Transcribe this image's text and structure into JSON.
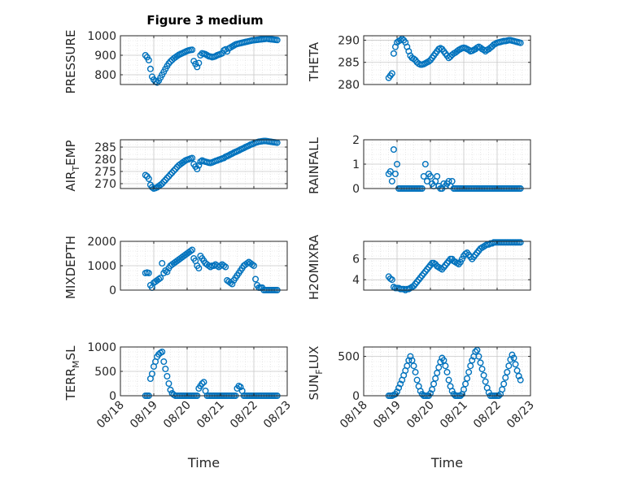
{
  "figure_title": "Figure 3 medium",
  "marker_color": "#0072BD",
  "chart_data": [
    {
      "type": "scatter",
      "ylabel": "PRESSURE",
      "ylim": [
        750,
        1000
      ],
      "yticks": [
        800,
        900,
        1000
      ],
      "xlim": [
        0,
        5
      ],
      "x": [
        0.75,
        0.8,
        0.85,
        0.9,
        0.95,
        1.0,
        1.05,
        1.1,
        1.15,
        1.2,
        1.25,
        1.3,
        1.35,
        1.4,
        1.45,
        1.5,
        1.55,
        1.6,
        1.65,
        1.7,
        1.75,
        1.8,
        1.85,
        1.9,
        1.95,
        2.0,
        2.05,
        2.1,
        2.15,
        2.2,
        2.25,
        2.3,
        2.35,
        2.4,
        2.45,
        2.5,
        2.55,
        2.6,
        2.65,
        2.7,
        2.75,
        2.8,
        2.85,
        2.9,
        2.95,
        3.0,
        3.05,
        3.1,
        3.15,
        3.2,
        3.25,
        3.3,
        3.35,
        3.4,
        3.45,
        3.5,
        3.55,
        3.6,
        3.65,
        3.7,
        3.75,
        3.8,
        3.85,
        3.9,
        3.95,
        4.0,
        4.05,
        4.1,
        4.15,
        4.2,
        4.25,
        4.3,
        4.35,
        4.4,
        4.45,
        4.5,
        4.55,
        4.6,
        4.65,
        4.7
      ],
      "y": [
        900,
        890,
        875,
        830,
        790,
        775,
        765,
        760,
        770,
        785,
        800,
        815,
        830,
        845,
        858,
        868,
        876,
        884,
        890,
        896,
        902,
        906,
        910,
        914,
        918,
        922,
        925,
        927,
        928,
        870,
        855,
        840,
        860,
        900,
        910,
        908,
        905,
        900,
        895,
        893,
        890,
        892,
        895,
        900,
        903,
        906,
        910,
        925,
        930,
        920,
        935,
        940,
        945,
        950,
        955,
        958,
        960,
        962,
        964,
        966,
        968,
        970,
        972,
        974,
        976,
        977,
        978,
        979,
        980,
        981,
        982,
        983,
        984,
        985,
        983,
        982,
        981,
        980,
        979,
        978
      ]
    },
    {
      "type": "scatter",
      "ylabel": "THETA",
      "ylim": [
        280,
        291
      ],
      "yticks": [
        280,
        285,
        290
      ],
      "xlim": [
        0,
        5
      ],
      "x": [
        0.75,
        0.8,
        0.85,
        0.9,
        0.95,
        1.0,
        1.05,
        1.1,
        1.15,
        1.2,
        1.25,
        1.3,
        1.35,
        1.4,
        1.45,
        1.5,
        1.55,
        1.6,
        1.65,
        1.7,
        1.75,
        1.8,
        1.85,
        1.9,
        1.95,
        2.0,
        2.05,
        2.1,
        2.15,
        2.2,
        2.25,
        2.3,
        2.35,
        2.4,
        2.45,
        2.5,
        2.55,
        2.6,
        2.65,
        2.7,
        2.75,
        2.8,
        2.85,
        2.9,
        2.95,
        3.0,
        3.05,
        3.1,
        3.15,
        3.2,
        3.25,
        3.3,
        3.35,
        3.4,
        3.45,
        3.5,
        3.55,
        3.6,
        3.65,
        3.7,
        3.75,
        3.8,
        3.85,
        3.9,
        3.95,
        4.0,
        4.05,
        4.1,
        4.15,
        4.2,
        4.25,
        4.3,
        4.35,
        4.4,
        4.45,
        4.5,
        4.55,
        4.6,
        4.65,
        4.7
      ],
      "y": [
        281.5,
        282,
        282.5,
        287,
        288.5,
        289.5,
        289.8,
        290,
        290.3,
        290,
        289.5,
        288.5,
        287.5,
        286.5,
        286,
        285.8,
        285.5,
        285,
        284.7,
        284.5,
        284.5,
        284.6,
        284.8,
        285,
        285.2,
        285.5,
        286,
        286.5,
        287,
        287.5,
        288,
        288.2,
        288,
        287.5,
        287,
        286.5,
        286,
        286.3,
        286.7,
        287,
        287.2,
        287.5,
        287.8,
        288,
        288.2,
        288.3,
        288.2,
        288,
        287.8,
        287.5,
        287.6,
        287.8,
        288,
        288.3,
        288.5,
        288.3,
        288,
        287.8,
        287.5,
        287.8,
        288,
        288.3,
        288.6,
        289,
        289.2,
        289.4,
        289.5,
        289.6,
        289.7,
        289.8,
        289.8,
        289.9,
        290,
        290,
        289.9,
        289.8,
        289.7,
        289.6,
        289.5,
        289.4
      ]
    },
    {
      "type": "scatter",
      "ylabel": "AIR_TEMP",
      "ylim": [
        268,
        288
      ],
      "yticks": [
        270,
        275,
        280,
        285
      ],
      "xlim": [
        0,
        5
      ],
      "x": [
        0.75,
        0.8,
        0.85,
        0.9,
        0.95,
        1.0,
        1.05,
        1.1,
        1.15,
        1.2,
        1.25,
        1.3,
        1.35,
        1.4,
        1.45,
        1.5,
        1.55,
        1.6,
        1.65,
        1.7,
        1.75,
        1.8,
        1.85,
        1.9,
        1.95,
        2.0,
        2.05,
        2.1,
        2.15,
        2.2,
        2.25,
        2.3,
        2.35,
        2.4,
        2.45,
        2.5,
        2.55,
        2.6,
        2.65,
        2.7,
        2.75,
        2.8,
        2.85,
        2.9,
        2.95,
        3.0,
        3.05,
        3.1,
        3.15,
        3.2,
        3.25,
        3.3,
        3.35,
        3.4,
        3.45,
        3.5,
        3.55,
        3.6,
        3.65,
        3.7,
        3.75,
        3.8,
        3.85,
        3.9,
        3.95,
        4.0,
        4.05,
        4.1,
        4.15,
        4.2,
        4.25,
        4.3,
        4.35,
        4.4,
        4.45,
        4.5,
        4.55,
        4.6,
        4.65,
        4.7
      ],
      "y": [
        273.5,
        273,
        272,
        269.5,
        268.5,
        268,
        268.2,
        268.5,
        269,
        269.5,
        270,
        270.8,
        271.5,
        272.3,
        273,
        273.8,
        274.5,
        275.3,
        276,
        276.8,
        277.5,
        278,
        278.5,
        279,
        279.5,
        279.8,
        280,
        280.3,
        280.5,
        278,
        277,
        276,
        277.5,
        279,
        279.5,
        279.2,
        279,
        278.8,
        278.6,
        278.5,
        278.7,
        279,
        279.3,
        279.5,
        279.8,
        280,
        280.3,
        280.5,
        281,
        281.3,
        281.6,
        282,
        282.3,
        282.7,
        283,
        283.3,
        283.6,
        284,
        284.3,
        284.6,
        285,
        285.3,
        285.6,
        286,
        286.2,
        286.5,
        286.8,
        287,
        287.2,
        287.3,
        287.4,
        287.5,
        287.5,
        287.4,
        287.3,
        287.2,
        287.1,
        287,
        286.9,
        286.8
      ]
    },
    {
      "type": "scatter",
      "ylabel": "RAINFALL",
      "ylim": [
        0,
        2
      ],
      "yticks": [
        0,
        1,
        2
      ],
      "xlim": [
        0,
        5
      ],
      "x": [
        0.75,
        0.8,
        0.85,
        0.9,
        0.95,
        1.0,
        1.05,
        1.1,
        1.15,
        1.2,
        1.25,
        1.3,
        1.35,
        1.4,
        1.45,
        1.5,
        1.55,
        1.6,
        1.65,
        1.7,
        1.75,
        1.8,
        1.85,
        1.9,
        1.95,
        2.0,
        2.05,
        2.1,
        2.15,
        2.2,
        2.25,
        2.3,
        2.35,
        2.4,
        2.45,
        2.5,
        2.55,
        2.6,
        2.65,
        2.7,
        2.75,
        2.8,
        2.85,
        2.9,
        2.95,
        3.0,
        3.05,
        3.1,
        3.15,
        3.2,
        3.25,
        3.3,
        3.35,
        3.4,
        3.45,
        3.5,
        3.55,
        3.6,
        3.65,
        3.7,
        3.75,
        3.8,
        3.85,
        3.9,
        3.95,
        4.0,
        4.05,
        4.1,
        4.15,
        4.2,
        4.25,
        4.3,
        4.35,
        4.4,
        4.45,
        4.5,
        4.55,
        4.6,
        4.65,
        4.7
      ],
      "y": [
        0.6,
        0.7,
        0.3,
        1.6,
        0.6,
        1.0,
        0,
        0,
        0,
        0,
        0,
        0,
        0,
        0,
        0,
        0,
        0,
        0,
        0,
        0,
        0,
        0.5,
        1.0,
        0.3,
        0.6,
        0.5,
        0.2,
        0.1,
        0.3,
        0.5,
        0.1,
        0,
        0,
        0.2,
        0.1,
        0.2,
        0.3,
        0.1,
        0.3,
        0,
        0,
        0,
        0,
        0,
        0,
        0,
        0,
        0,
        0,
        0,
        0,
        0,
        0,
        0,
        0,
        0,
        0,
        0,
        0,
        0,
        0,
        0,
        0,
        0,
        0,
        0,
        0,
        0,
        0,
        0,
        0,
        0,
        0,
        0,
        0,
        0,
        0,
        0,
        0,
        0
      ]
    },
    {
      "type": "scatter",
      "ylabel": "MIXDEPTH",
      "ylim": [
        0,
        2000
      ],
      "yticks": [
        0,
        1000,
        2000
      ],
      "xlim": [
        0,
        5
      ],
      "x": [
        0.75,
        0.8,
        0.85,
        0.9,
        0.95,
        1.0,
        1.05,
        1.1,
        1.15,
        1.2,
        1.25,
        1.3,
        1.35,
        1.4,
        1.45,
        1.5,
        1.55,
        1.6,
        1.65,
        1.7,
        1.75,
        1.8,
        1.85,
        1.9,
        1.95,
        2.0,
        2.05,
        2.1,
        2.15,
        2.2,
        2.25,
        2.3,
        2.35,
        2.4,
        2.45,
        2.5,
        2.55,
        2.6,
        2.65,
        2.7,
        2.75,
        2.8,
        2.85,
        2.9,
        2.95,
        3.0,
        3.05,
        3.1,
        3.15,
        3.2,
        3.25,
        3.3,
        3.35,
        3.4,
        3.45,
        3.5,
        3.55,
        3.6,
        3.65,
        3.7,
        3.75,
        3.8,
        3.85,
        3.9,
        3.95,
        4.0,
        4.05,
        4.1,
        4.15,
        4.2,
        4.25,
        4.3,
        4.35,
        4.4,
        4.45,
        4.5,
        4.55,
        4.6,
        4.65,
        4.7
      ],
      "y": [
        700,
        720,
        700,
        200,
        100,
        300,
        350,
        400,
        450,
        500,
        1100,
        700,
        800,
        750,
        900,
        1000,
        1050,
        1100,
        1150,
        1200,
        1250,
        1300,
        1350,
        1400,
        1450,
        1500,
        1550,
        1600,
        1650,
        1300,
        1200,
        1000,
        900,
        1400,
        1300,
        1200,
        1100,
        1050,
        1000,
        950,
        1000,
        1000,
        1050,
        1000,
        950,
        1000,
        1050,
        1000,
        950,
        400,
        350,
        300,
        250,
        400,
        500,
        600,
        700,
        800,
        900,
        1000,
        1050,
        1100,
        1150,
        1100,
        1050,
        1000,
        450,
        200,
        100,
        100,
        100,
        0,
        0,
        0,
        0,
        0,
        0,
        0,
        0,
        0
      ]
    },
    {
      "type": "scatter",
      "ylabel": "H2OMIXRA",
      "ylim": [
        3,
        7.7
      ],
      "yticks": [
        4,
        6
      ],
      "xlim": [
        0,
        5
      ],
      "x": [
        0.75,
        0.8,
        0.85,
        0.9,
        0.95,
        1.0,
        1.05,
        1.1,
        1.15,
        1.2,
        1.25,
        1.3,
        1.35,
        1.4,
        1.45,
        1.5,
        1.55,
        1.6,
        1.65,
        1.7,
        1.75,
        1.8,
        1.85,
        1.9,
        1.95,
        2.0,
        2.05,
        2.1,
        2.15,
        2.2,
        2.25,
        2.3,
        2.35,
        2.4,
        2.45,
        2.5,
        2.55,
        2.6,
        2.65,
        2.7,
        2.75,
        2.8,
        2.85,
        2.9,
        2.95,
        3.0,
        3.05,
        3.1,
        3.15,
        3.2,
        3.25,
        3.3,
        3.35,
        3.4,
        3.45,
        3.5,
        3.55,
        3.6,
        3.65,
        3.7,
        3.75,
        3.8,
        3.85,
        3.9,
        3.95,
        4.0,
        4.05,
        4.1,
        4.15,
        4.2,
        4.25,
        4.3,
        4.35,
        4.4,
        4.45,
        4.5,
        4.55,
        4.6,
        4.65,
        4.7
      ],
      "y": [
        4.3,
        4.1,
        4.0,
        3.3,
        3.2,
        3.2,
        3.2,
        3.1,
        3.1,
        3.1,
        3.0,
        3.1,
        3.1,
        3.2,
        3.3,
        3.4,
        3.6,
        3.8,
        4.0,
        4.2,
        4.4,
        4.6,
        4.8,
        5.0,
        5.2,
        5.4,
        5.6,
        5.6,
        5.5,
        5.3,
        5.2,
        5.1,
        5.0,
        5.2,
        5.4,
        5.6,
        5.8,
        6.0,
        6.0,
        5.8,
        5.7,
        5.6,
        5.5,
        5.7,
        6.0,
        6.3,
        6.5,
        6.6,
        6.4,
        6.2,
        6.0,
        6.2,
        6.4,
        6.6,
        6.8,
        7.0,
        7.1,
        7.2,
        7.3,
        7.4,
        7.4,
        7.5,
        7.5,
        7.6,
        7.6,
        7.6,
        7.6,
        7.6,
        7.6,
        7.6,
        7.6,
        7.6,
        7.6,
        7.6,
        7.6,
        7.6,
        7.6,
        7.6,
        7.6,
        7.6
      ]
    },
    {
      "type": "scatter",
      "ylabel": "TERR_MSL",
      "ylim": [
        0,
        1000
      ],
      "yticks": [
        0,
        500,
        1000
      ],
      "xlim": [
        0,
        5
      ],
      "x": [
        0.75,
        0.8,
        0.85,
        0.9,
        0.95,
        1.0,
        1.05,
        1.1,
        1.15,
        1.2,
        1.25,
        1.3,
        1.35,
        1.4,
        1.45,
        1.5,
        1.55,
        1.6,
        1.65,
        1.7,
        1.75,
        1.8,
        1.85,
        1.9,
        1.95,
        2.0,
        2.05,
        2.1,
        2.15,
        2.2,
        2.25,
        2.3,
        2.35,
        2.4,
        2.45,
        2.5,
        2.55,
        2.6,
        2.65,
        2.7,
        2.75,
        2.8,
        2.85,
        2.9,
        2.95,
        3.0,
        3.05,
        3.1,
        3.15,
        3.2,
        3.25,
        3.3,
        3.35,
        3.4,
        3.45,
        3.5,
        3.55,
        3.6,
        3.65,
        3.7,
        3.75,
        3.8,
        3.85,
        3.9,
        3.95,
        4.0,
        4.05,
        4.1,
        4.15,
        4.2,
        4.25,
        4.3,
        4.35,
        4.4,
        4.45,
        4.5,
        4.55,
        4.6,
        4.65,
        4.7
      ],
      "y": [
        0,
        0,
        0,
        350,
        450,
        600,
        700,
        800,
        850,
        880,
        900,
        700,
        550,
        400,
        250,
        120,
        50,
        20,
        0,
        0,
        0,
        0,
        0,
        0,
        0,
        0,
        0,
        0,
        0,
        0,
        0,
        0,
        150,
        200,
        250,
        280,
        100,
        0,
        0,
        0,
        0,
        0,
        0,
        0,
        0,
        0,
        0,
        0,
        0,
        0,
        0,
        0,
        0,
        0,
        0,
        150,
        200,
        180,
        100,
        0,
        0,
        0,
        0,
        0,
        0,
        0,
        0,
        0,
        0,
        0,
        0,
        0,
        0,
        0,
        0,
        0,
        0,
        0,
        0,
        0
      ]
    },
    {
      "type": "scatter",
      "ylabel": "SUN_FLUX",
      "ylim": [
        0,
        620
      ],
      "yticks": [
        0,
        500
      ],
      "xlim": [
        0,
        5
      ],
      "x": [
        0.75,
        0.8,
        0.85,
        0.9,
        0.95,
        1.0,
        1.05,
        1.1,
        1.15,
        1.2,
        1.25,
        1.3,
        1.35,
        1.4,
        1.45,
        1.5,
        1.55,
        1.6,
        1.65,
        1.7,
        1.75,
        1.8,
        1.85,
        1.9,
        1.95,
        2.0,
        2.05,
        2.1,
        2.15,
        2.2,
        2.25,
        2.3,
        2.35,
        2.4,
        2.45,
        2.5,
        2.55,
        2.6,
        2.65,
        2.7,
        2.75,
        2.8,
        2.85,
        2.9,
        2.95,
        3.0,
        3.05,
        3.1,
        3.15,
        3.2,
        3.25,
        3.3,
        3.35,
        3.4,
        3.45,
        3.5,
        3.55,
        3.6,
        3.65,
        3.7,
        3.75,
        3.8,
        3.85,
        3.9,
        3.95,
        4.0,
        4.05,
        4.1,
        4.15,
        4.2,
        4.25,
        4.3,
        4.35,
        4.4,
        4.45,
        4.5,
        4.55,
        4.6,
        4.65,
        4.7
      ],
      "y": [
        0,
        0,
        0,
        10,
        20,
        50,
        100,
        150,
        200,
        260,
        320,
        380,
        450,
        500,
        450,
        380,
        300,
        200,
        120,
        60,
        20,
        0,
        0,
        0,
        0,
        30,
        80,
        150,
        220,
        290,
        360,
        430,
        480,
        450,
        380,
        300,
        200,
        120,
        60,
        20,
        0,
        0,
        0,
        0,
        20,
        80,
        150,
        220,
        300,
        380,
        450,
        500,
        560,
        580,
        500,
        420,
        340,
        260,
        180,
        100,
        40,
        0,
        0,
        0,
        0,
        0,
        0,
        20,
        80,
        150,
        230,
        300,
        380,
        460,
        520,
        480,
        400,
        320,
        250,
        200
      ]
    }
  ],
  "x_axis": {
    "ticks": [
      0,
      1,
      2,
      3,
      4,
      5
    ],
    "labels": [
      "08/18",
      "08/19",
      "08/20",
      "08/21",
      "08/22",
      "08/23"
    ],
    "label": "Time"
  }
}
